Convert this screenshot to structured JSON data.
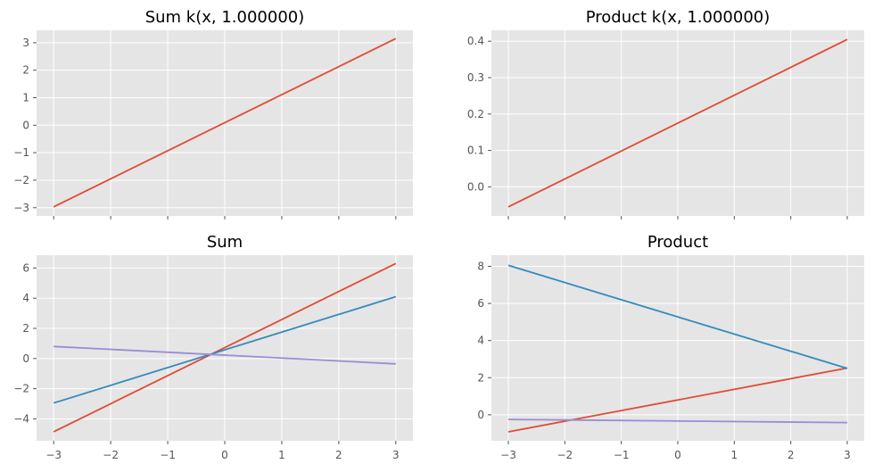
{
  "figure": {
    "colors": [
      "#E24A33",
      "#348ABD",
      "#988ED5"
    ],
    "background": "#E5E5E5",
    "grid_color": "#FFFFFF"
  },
  "chart_data": [
    {
      "type": "line",
      "title": "Sum k(x, 1.000000)",
      "xlabel": "",
      "ylabel": "",
      "xlim": [
        -3.3,
        3.3
      ],
      "ylim": [
        -3.3,
        3.45
      ],
      "xticks": [
        -3,
        -2,
        -1,
        0,
        1,
        2,
        3
      ],
      "xticks_visible": false,
      "yticks": [
        -3,
        -2,
        -1,
        0,
        1,
        2,
        3
      ],
      "ytick_labels": [
        "−3",
        "−2",
        "−1",
        "0",
        "1",
        "2",
        "3"
      ],
      "grid": true,
      "series": [
        {
          "color": "#E24A33",
          "x": [
            -3,
            3
          ],
          "y": [
            -2.97,
            3.15
          ]
        }
      ]
    },
    {
      "type": "line",
      "title": "Product k(x, 1.000000)",
      "xlabel": "",
      "ylabel": "",
      "xlim": [
        -3.3,
        3.3
      ],
      "ylim": [
        -0.08,
        0.43
      ],
      "xticks": [
        -3,
        -2,
        -1,
        0,
        1,
        2,
        3
      ],
      "xticks_visible": false,
      "yticks": [
        0.0,
        0.1,
        0.2,
        0.3,
        0.4
      ],
      "ytick_labels": [
        "0.0",
        "0.1",
        "0.2",
        "0.3",
        "0.4"
      ],
      "grid": true,
      "series": [
        {
          "color": "#E24A33",
          "x": [
            -3,
            3
          ],
          "y": [
            -0.055,
            0.405
          ]
        }
      ]
    },
    {
      "type": "line",
      "title": "Sum",
      "xlabel": "",
      "ylabel": "",
      "xlim": [
        -3.3,
        3.3
      ],
      "ylim": [
        -5.45,
        6.85
      ],
      "xticks": [
        -3,
        -2,
        -1,
        0,
        1,
        2,
        3
      ],
      "xtick_labels": [
        "−3",
        "−2",
        "−1",
        "0",
        "1",
        "2",
        "3"
      ],
      "xticks_visible": true,
      "yticks": [
        -4,
        -2,
        0,
        2,
        4,
        6
      ],
      "ytick_labels": [
        "−4",
        "−2",
        "0",
        "2",
        "4",
        "6"
      ],
      "grid": true,
      "series": [
        {
          "color": "#E24A33",
          "x": [
            -3,
            3
          ],
          "y": [
            -4.85,
            6.3
          ]
        },
        {
          "color": "#348ABD",
          "x": [
            -3,
            3
          ],
          "y": [
            -2.95,
            4.1
          ]
        },
        {
          "color": "#988ED5",
          "x": [
            -3,
            3
          ],
          "y": [
            0.8,
            -0.35
          ]
        }
      ]
    },
    {
      "type": "line",
      "title": "Product",
      "xlabel": "",
      "ylabel": "",
      "xlim": [
        -3.3,
        3.3
      ],
      "ylim": [
        -1.4,
        8.6
      ],
      "xticks": [
        -3,
        -2,
        -1,
        0,
        1,
        2,
        3
      ],
      "xtick_labels": [
        "−3",
        "−2",
        "−1",
        "0",
        "1",
        "2",
        "3"
      ],
      "xticks_visible": true,
      "yticks": [
        0,
        2,
        4,
        6,
        8
      ],
      "ytick_labels": [
        "0",
        "2",
        "4",
        "6",
        "8"
      ],
      "grid": true,
      "series": [
        {
          "color": "#E24A33",
          "x": [
            -3,
            3
          ],
          "y": [
            -0.92,
            2.52
          ]
        },
        {
          "color": "#348ABD",
          "x": [
            -3,
            3
          ],
          "y": [
            8.05,
            2.5
          ]
        },
        {
          "color": "#988ED5",
          "x": [
            -3,
            3
          ],
          "y": [
            -0.25,
            -0.42
          ]
        }
      ]
    }
  ]
}
